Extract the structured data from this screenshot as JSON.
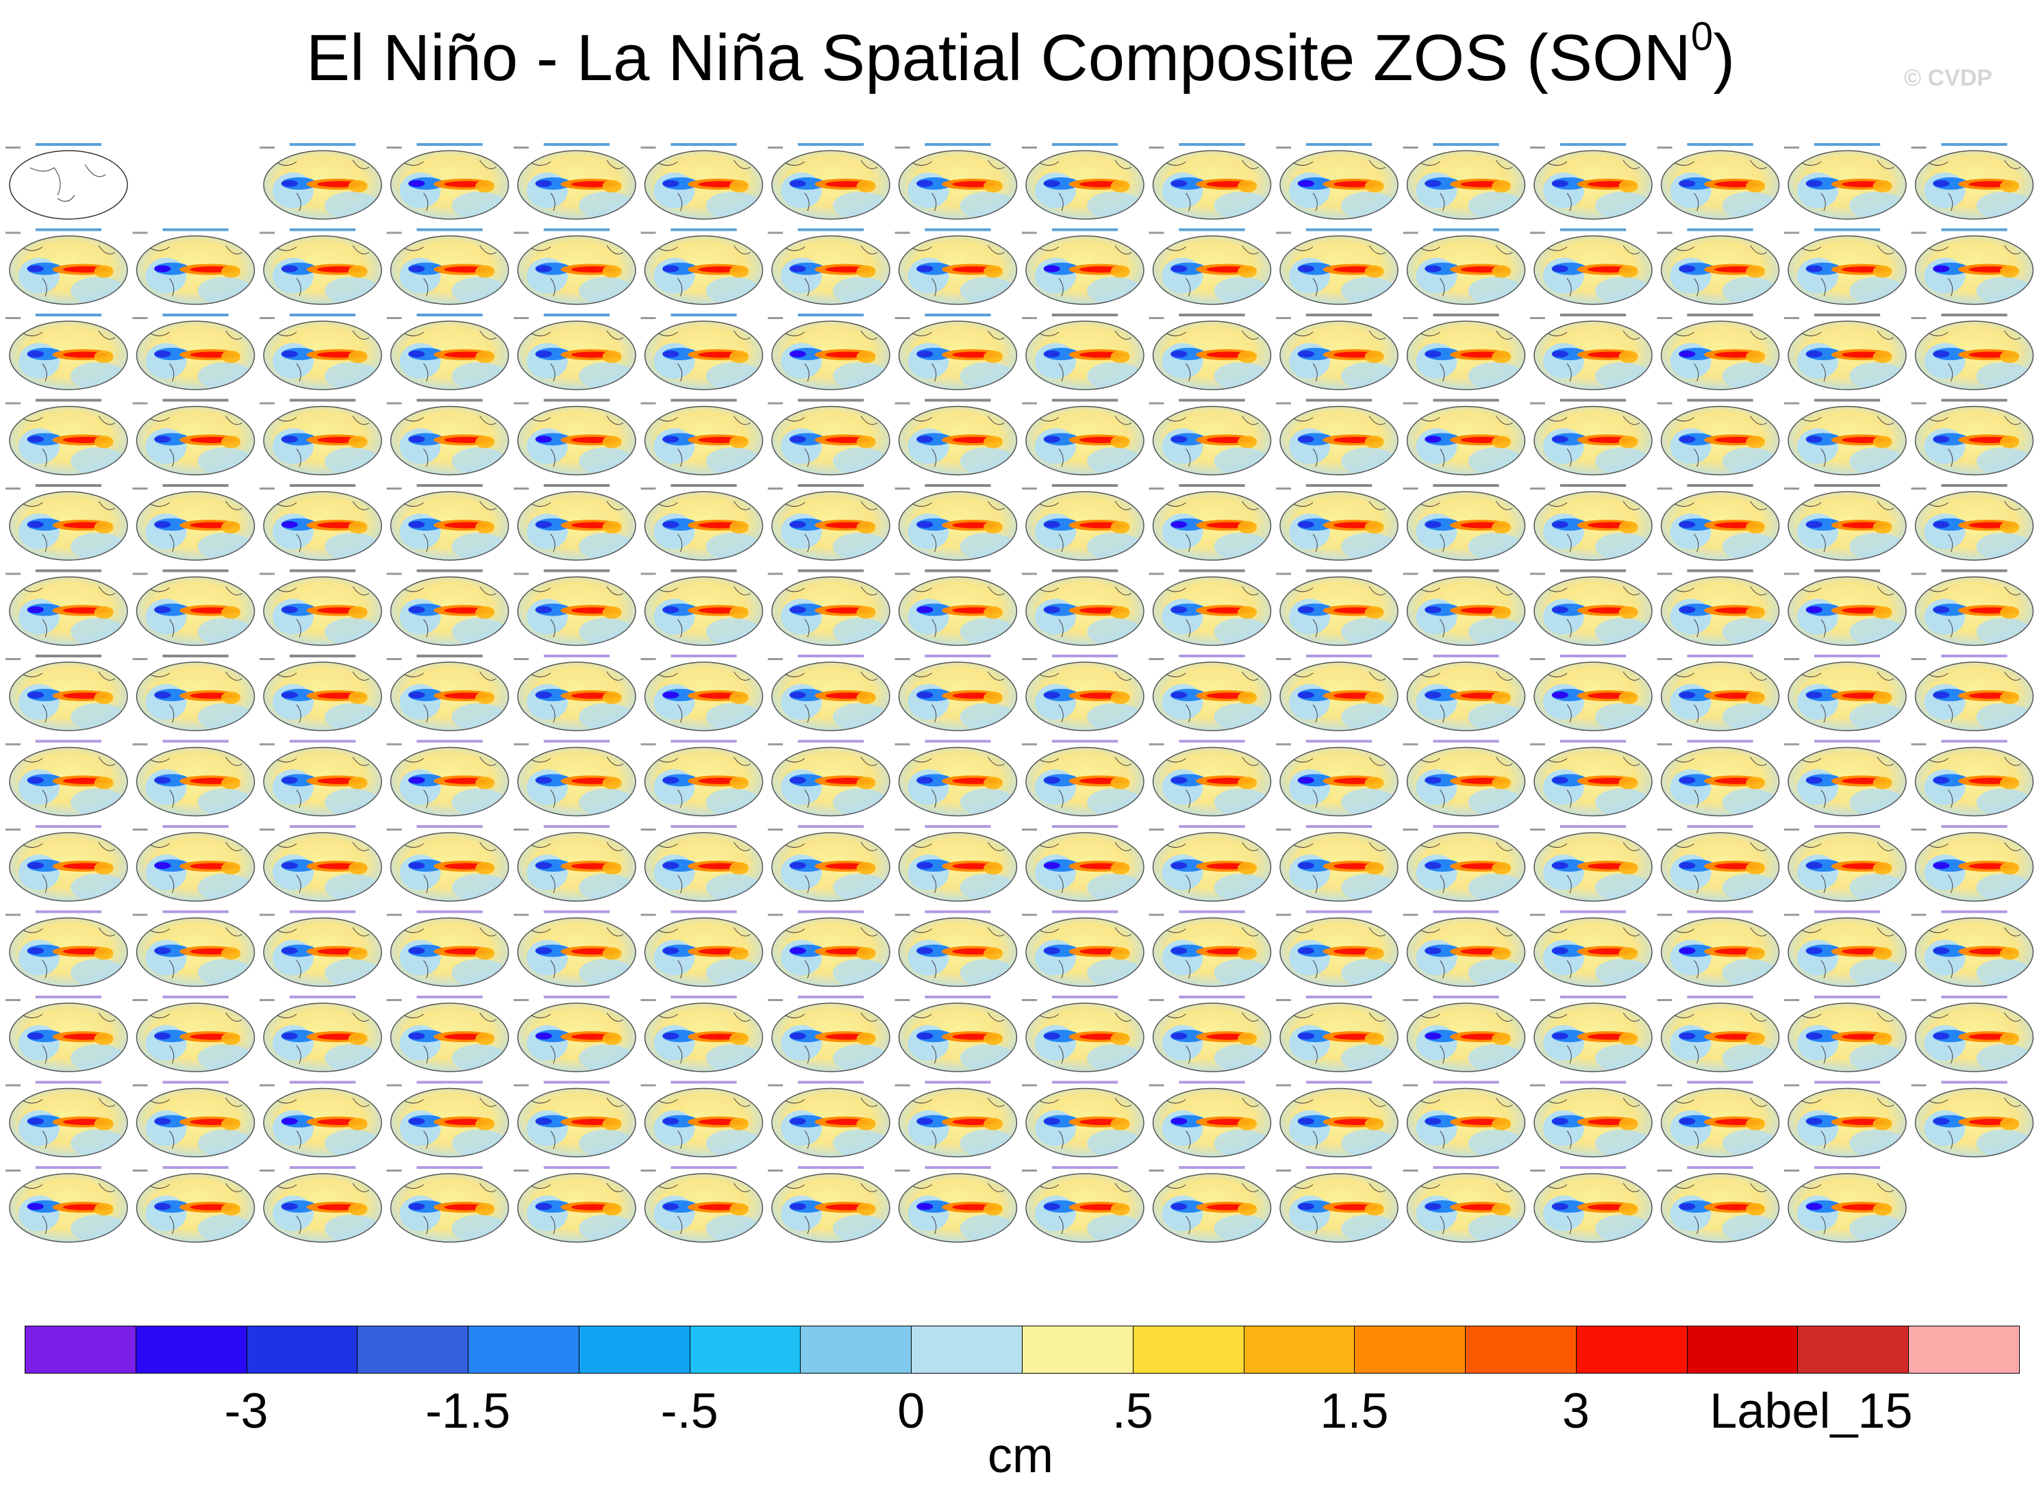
{
  "title": {
    "main": "El Niño - La Niña Spatial Composite ZOS (SON",
    "superscript": "0",
    "close": ")"
  },
  "watermark": "© CVDP",
  "chart_data": {
    "type": "heatmap",
    "title": "El Niño - La Niña Spatial Composite ZOS (SON0)",
    "panel_grid": {
      "rows": 13,
      "columns": 16
    },
    "panel_count": 206,
    "colorbar": {
      "units": "cm",
      "colors": [
        "#7a1ee8",
        "#2a08f5",
        "#1e32e6",
        "#3560dc",
        "#2585f5",
        "#12a3f2",
        "#1ec0f6",
        "#80c8ec",
        "#b6dff0",
        "#fbf39b",
        "#fddc37",
        "#fdb413",
        "#fd8a00",
        "#fc5a00",
        "#fb1200",
        "#dc0202",
        "#d02a29",
        "#fdaaab"
      ],
      "labels": [
        "-3",
        "-1.5",
        "-.5",
        "0",
        ".5",
        "1.5",
        "3",
        "Label_15"
      ],
      "label_boundaries": [
        2,
        4,
        6,
        8,
        10,
        12,
        14,
        16
      ]
    }
  }
}
